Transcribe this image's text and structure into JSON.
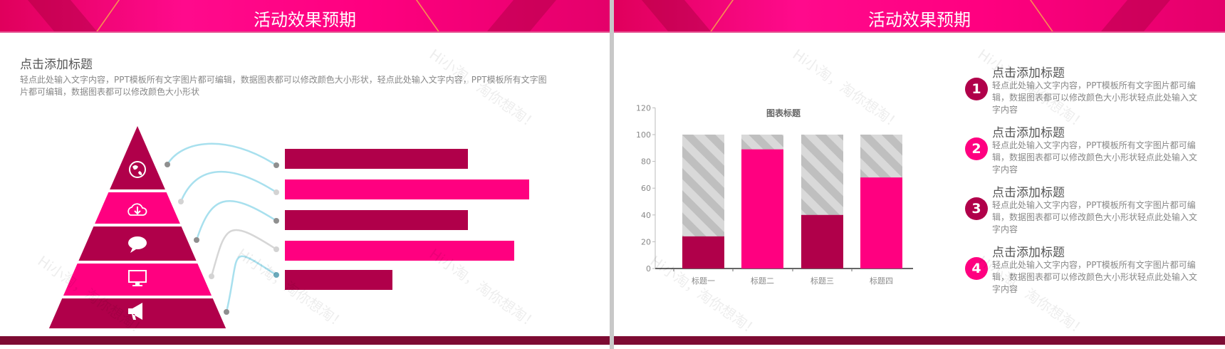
{
  "slide1": {
    "header_title": "活动效果预期",
    "heading": "点击添加标题",
    "body": "轻点此处输入文字内容，PPT模板所有文字图片都可编辑，数据图表都可以修改颜色大小形状，轻点此处输入文字内容，PPT模板所有文字图片都可编辑，数据图表都可以修改颜色大小形状",
    "pyramid_icons": [
      "globe-icon",
      "cloud-download-icon",
      "speech-bubble-icon",
      "monitor-icon",
      "megaphone-icon"
    ],
    "bar_levels": [
      0.75,
      1.0,
      0.75,
      0.94,
      0.44
    ]
  },
  "slide2": {
    "header_title": "活动效果预期",
    "items": [
      {
        "num": "1",
        "title": "点击添加标题",
        "text": "轻点此处输入文字内容，PPT模板所有文字图片都可编辑，数据图表都可以修改颜色大小形状轻点此处输入文字内容",
        "color": "#b0004a"
      },
      {
        "num": "2",
        "title": "点击添加标题",
        "text": "轻点此处输入文字内容，PPT模板所有文字图片都可编辑，数据图表都可以修改颜色大小形状轻点此处输入文字内容",
        "color": "#ff0080"
      },
      {
        "num": "3",
        "title": "点击添加标题",
        "text": "轻点此处输入文字内容，PPT模板所有文字图片都可编辑，数据图表都可以修改颜色大小形状轻点此处输入文字内容",
        "color": "#b0004a"
      },
      {
        "num": "4",
        "title": "点击添加标题",
        "text": "轻点此处输入文字内容，PPT模板所有文字图片都可编辑，数据图表都可以修改颜色大小形状轻点此处输入文字内容",
        "color": "#ff0080"
      }
    ]
  },
  "watermark": "Hi小淘，淘你想淘！",
  "colors": {
    "dark": "#b0004a",
    "pink": "#ff0080",
    "footer": "#7d0b33"
  },
  "chart_data": {
    "type": "bar",
    "title": "图表标题",
    "categories": [
      "标题一",
      "标题二",
      "标题三",
      "标题四"
    ],
    "series": [
      {
        "values": [
          24,
          89,
          40,
          68
        ]
      },
      {
        "values": [
          100,
          100,
          100,
          100
        ]
      }
    ],
    "bar_colors": [
      "#b0004a",
      "#ff0080",
      "#b0004a",
      "#ff0080"
    ],
    "background_style": "gray diagonal stripes",
    "ylim": [
      0,
      120
    ],
    "yticks": [
      0,
      20,
      40,
      60,
      80,
      100,
      120
    ],
    "grid": false
  }
}
